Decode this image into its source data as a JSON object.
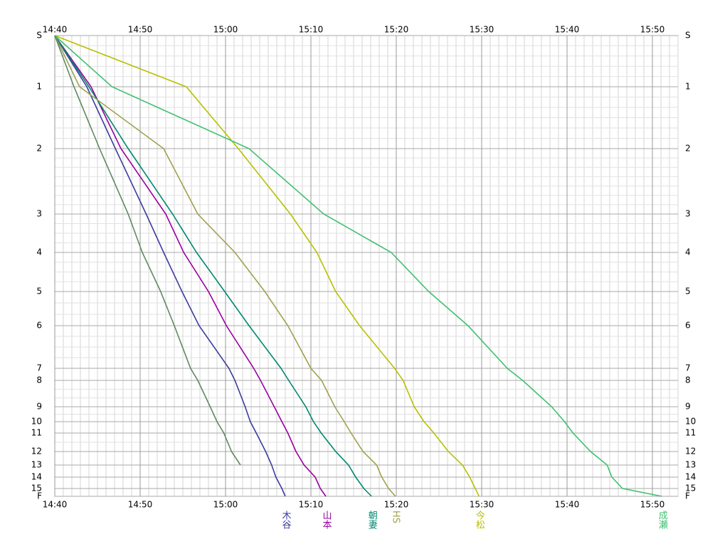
{
  "chart_data": {
    "type": "line",
    "categories": [
      "S",
      "1",
      "2",
      "3",
      "4",
      "5",
      "6",
      "7",
      "8",
      "9",
      "10",
      "11",
      "12",
      "13",
      "14",
      "15",
      "F"
    ],
    "xlim": [
      0,
      73
    ],
    "xticks": [
      {
        "value": 0,
        "label": "14:40"
      },
      {
        "value": 10,
        "label": "14:50"
      },
      {
        "value": 20,
        "label": "15:00"
      },
      {
        "value": 30,
        "label": "15:10"
      },
      {
        "value": 40,
        "label": "15:20"
      },
      {
        "value": 50,
        "label": "15:30"
      },
      {
        "value": 60,
        "label": "15:40"
      },
      {
        "value": 70,
        "label": "15:50"
      }
    ],
    "grid": true,
    "series": [
      {
        "name": "木谷",
        "color": "#3c3ca0",
        "values": [
          0,
          3.75,
          7.1,
          10.7,
          12.75,
          14.9,
          16.9,
          20.4,
          21.1,
          22.3,
          22.9,
          23.6,
          24.7,
          25.4,
          25.9,
          26.6,
          27
        ]
      },
      {
        "name": "山本",
        "color": "#9900a0",
        "values": [
          0,
          4.25,
          7.75,
          13,
          15.1,
          18,
          20.1,
          23.3,
          24.1,
          25.7,
          26.6,
          27.3,
          28.25,
          29.2,
          30.5,
          31.1,
          31.75
        ]
      },
      {
        "name": "朝妻",
        "color": "#008870",
        "values": [
          0,
          4,
          8.6,
          13.8,
          16.6,
          19.9,
          22.75,
          26.5,
          27.4,
          29.4,
          30.3,
          31.2,
          32.9,
          34.4,
          35.25,
          36.2,
          37.1
        ]
      },
      {
        "name": "HS",
        "color": "#a0a050",
        "values": [
          0,
          2.9,
          12.75,
          16.75,
          21.1,
          24.6,
          27.3,
          30,
          31.25,
          32.8,
          33.9,
          34.7,
          36.1,
          37.7,
          38.3,
          39.1,
          39.9
        ]
      },
      {
        "name": "今松",
        "color": "#b8c000",
        "values": [
          0,
          15.4,
          21.5,
          27.6,
          30.7,
          32.9,
          35.7,
          39.8,
          40.8,
          42.1,
          43.25,
          44.4,
          46.1,
          47.75,
          48.6,
          49.25,
          49.7
        ]
      },
      {
        "name": "成瀬",
        "color": "#40c070",
        "values": [
          0,
          6.7,
          22.75,
          31.5,
          39.4,
          43.8,
          48.4,
          53,
          54.8,
          58.2,
          59.7,
          60.7,
          62.75,
          64.7,
          65.25,
          66.5,
          71.1
        ]
      },
      {
        "name": null,
        "color": "#608860",
        "values": [
          0,
          2.25,
          5.25,
          8.6,
          10.25,
          12.4,
          14,
          15.9,
          16.75,
          18.2,
          19,
          19.8,
          20.7,
          21.75,
          null,
          null,
          null
        ]
      }
    ]
  }
}
